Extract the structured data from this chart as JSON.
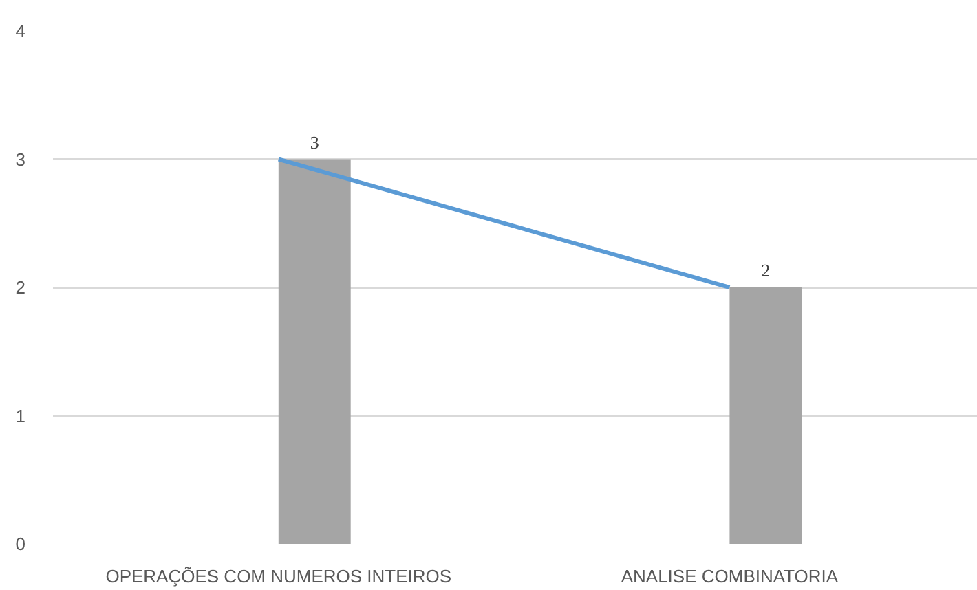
{
  "chart_data": {
    "type": "bar",
    "categories": [
      "OPERAÇÕES COM NUMEROS INTEIROS",
      "ANALISE COMBINATORIA"
    ],
    "series": [
      {
        "color": "#a5a5a5",
        "values": [
          3,
          2
        ],
        "value_labels": [
          "3",
          "2"
        ]
      },
      {
        "type": "line",
        "color": "#5b9bd5",
        "values": [
          3,
          2
        ]
      }
    ],
    "ylim": [
      0,
      4
    ],
    "yticks": [
      0,
      1,
      2,
      3,
      4
    ],
    "grid": "y"
  }
}
